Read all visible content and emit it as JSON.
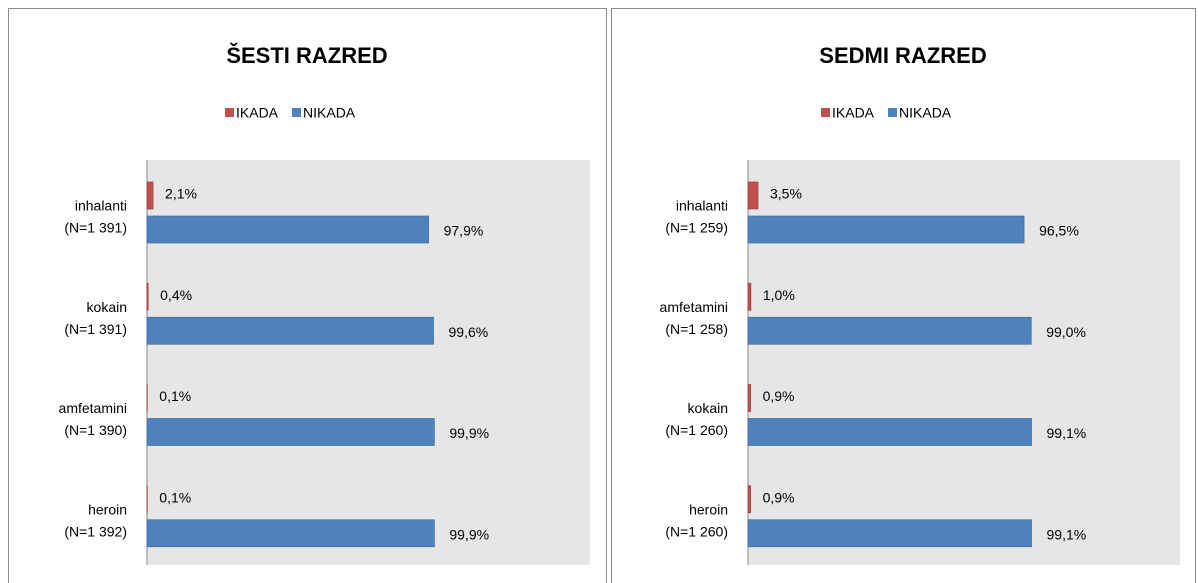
{
  "chart_data": [
    {
      "type": "bar",
      "orientation": "horizontal",
      "title": "ŠESTI RAZRED",
      "categories": [
        [
          "inhalanti",
          "(N=1 391)"
        ],
        [
          "kokain",
          "(N=1 391)"
        ],
        [
          "amfetamini",
          "(N=1 390)"
        ],
        [
          "heroin",
          "(N=1 392)"
        ]
      ],
      "series": [
        {
          "name": "IKADA",
          "color": "#c0504d",
          "values": [
            2.1,
            0.4,
            0.1,
            0.1
          ],
          "value_labels": [
            "2,1%",
            "0,4%",
            "0,1%",
            "0,1%"
          ]
        },
        {
          "name": "NIKADA",
          "color": "#4f81bd",
          "values": [
            97.9,
            99.6,
            99.9,
            99.9
          ],
          "value_labels": [
            "97,9%",
            "99,6%",
            "99,9%",
            "99,9%"
          ]
        }
      ],
      "xlim": [
        0,
        154
      ],
      "legend": "top"
    },
    {
      "type": "bar",
      "orientation": "horizontal",
      "title": "SEDMI RAZRED",
      "categories": [
        [
          "inhalanti",
          "(N=1 259)"
        ],
        [
          "amfetamini",
          "(N=1 258)"
        ],
        [
          "kokain",
          "(N=1 260)"
        ],
        [
          "heroin",
          "(N=1 260)"
        ]
      ],
      "series": [
        {
          "name": "IKADA",
          "color": "#c0504d",
          "values": [
            3.5,
            1.0,
            0.9,
            0.9
          ],
          "value_labels": [
            "3,5%",
            "1,0%",
            "0,9%",
            "0,9%"
          ]
        },
        {
          "name": "NIKADA",
          "color": "#4f81bd",
          "values": [
            96.5,
            99.0,
            99.1,
            99.1
          ],
          "value_labels": [
            "96,5%",
            "99,0%",
            "99,1%",
            "99,1%"
          ]
        }
      ],
      "xlim": [
        0,
        151
      ],
      "legend": "top"
    }
  ]
}
